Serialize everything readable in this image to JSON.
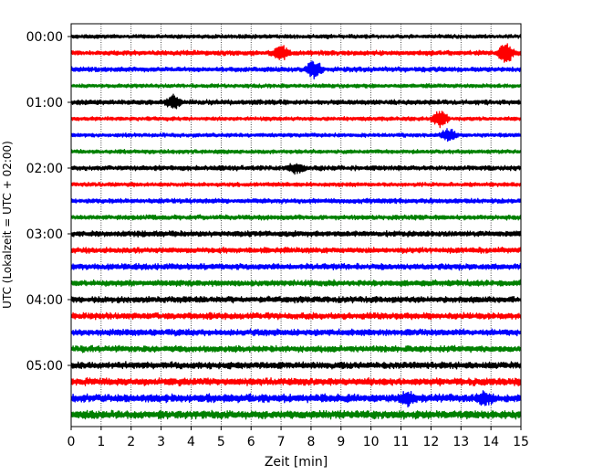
{
  "chart_data": {
    "type": "line",
    "xlabel": "Zeit  [min]",
    "ylabel": "UTC (Lokalzeit = UTC + 02:00)",
    "xlim": [
      0,
      15
    ],
    "x_ticks": [
      0,
      1,
      2,
      3,
      4,
      5,
      6,
      7,
      8,
      9,
      10,
      11,
      12,
      13,
      14,
      15
    ],
    "x_tick_labels": [
      "0",
      "1",
      "2",
      "3",
      "4",
      "5",
      "6",
      "7",
      "8",
      "9",
      "10",
      "11",
      "12",
      "13",
      "14",
      "15"
    ],
    "y_tick_labels": [
      "00:00",
      "01:00",
      "02:00",
      "03:00",
      "04:00",
      "05:00"
    ],
    "y_tick_trace_index": [
      0,
      4,
      8,
      12,
      16,
      20
    ],
    "grid": "vertical-dotted",
    "colors": [
      "#000000",
      "#ff0000",
      "#0000ff",
      "#008000"
    ],
    "traces": [
      {
        "start": "00:00",
        "color": "#000000",
        "amplitude": 0.1
      },
      {
        "start": "00:15",
        "color": "#ff0000",
        "amplitude": 0.12,
        "events": [
          [
            7.0,
            0.4
          ],
          [
            14.5,
            0.6
          ]
        ]
      },
      {
        "start": "00:30",
        "color": "#0000ff",
        "amplitude": 0.12,
        "events": [
          [
            8.1,
            0.5
          ]
        ]
      },
      {
        "start": "00:45",
        "color": "#008000",
        "amplitude": 0.1
      },
      {
        "start": "01:00",
        "color": "#000000",
        "amplitude": 0.12,
        "events": [
          [
            3.4,
            0.35
          ]
        ]
      },
      {
        "start": "01:15",
        "color": "#ff0000",
        "amplitude": 0.1,
        "events": [
          [
            12.3,
            0.5
          ]
        ]
      },
      {
        "start": "01:30",
        "color": "#0000ff",
        "amplitude": 0.1,
        "events": [
          [
            12.6,
            0.35
          ]
        ]
      },
      {
        "start": "01:45",
        "color": "#008000",
        "amplitude": 0.1
      },
      {
        "start": "02:00",
        "color": "#000000",
        "amplitude": 0.12,
        "events": [
          [
            7.5,
            0.25
          ]
        ]
      },
      {
        "start": "02:15",
        "color": "#ff0000",
        "amplitude": 0.1
      },
      {
        "start": "02:30",
        "color": "#0000ff",
        "amplitude": 0.12
      },
      {
        "start": "02:45",
        "color": "#008000",
        "amplitude": 0.12
      },
      {
        "start": "03:00",
        "color": "#000000",
        "amplitude": 0.14
      },
      {
        "start": "03:15",
        "color": "#ff0000",
        "amplitude": 0.14
      },
      {
        "start": "03:30",
        "color": "#0000ff",
        "amplitude": 0.15
      },
      {
        "start": "03:45",
        "color": "#008000",
        "amplitude": 0.15
      },
      {
        "start": "04:00",
        "color": "#000000",
        "amplitude": 0.15
      },
      {
        "start": "04:15",
        "color": "#ff0000",
        "amplitude": 0.16
      },
      {
        "start": "04:30",
        "color": "#0000ff",
        "amplitude": 0.16
      },
      {
        "start": "04:45",
        "color": "#008000",
        "amplitude": 0.16
      },
      {
        "start": "05:00",
        "color": "#000000",
        "amplitude": 0.17
      },
      {
        "start": "05:15",
        "color": "#ff0000",
        "amplitude": 0.18
      },
      {
        "start": "05:30",
        "color": "#0000ff",
        "amplitude": 0.2,
        "events": [
          [
            11.2,
            0.35
          ],
          [
            13.8,
            0.35
          ]
        ]
      },
      {
        "start": "05:45",
        "color": "#008000",
        "amplitude": 0.2
      }
    ]
  }
}
